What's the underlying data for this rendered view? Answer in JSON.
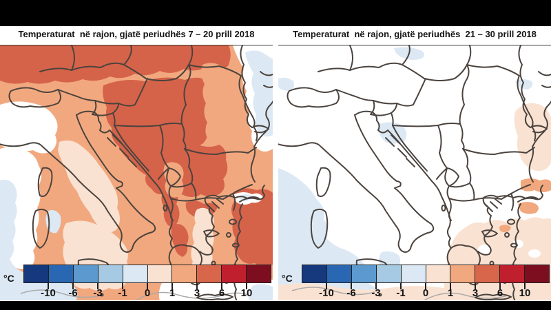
{
  "panels": [
    {
      "title": "Temperaturat  në rajon, gjatë periudhës 7 – 20 prill 2018"
    },
    {
      "title": "Temperaturat  në rajon, gjatë periudhës  21 – 30 prill 2018"
    }
  ],
  "colorbar": {
    "unit": "°C",
    "ticks": [
      "-10",
      "-6",
      "-3",
      "-1",
      "0",
      "1",
      "3",
      "6",
      "10"
    ],
    "colors": [
      "#16387D",
      "#2A67B2",
      "#5B99CE",
      "#A6CAE4",
      "#DCE9F4",
      "#FAE2D2",
      "#F2A87E",
      "#D8664B",
      "#C01F2D",
      "#7D0E20"
    ]
  },
  "palette": {
    "z0": "#DCE9F4",
    "p1": "#FAE2D2",
    "p3": "#F2A87E",
    "p6": "#D5634A",
    "border": "#4B433E",
    "coast_faint": "#AAAAAA",
    "bar_outline": "#1F1F1F",
    "frame": "#000000"
  }
}
